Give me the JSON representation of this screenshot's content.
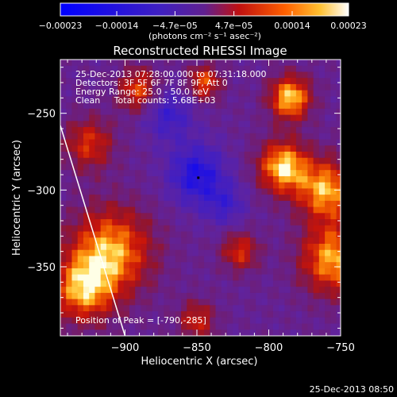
{
  "chart_data": {
    "type": "heatmap",
    "title": "Reconstructed RHESSI Image",
    "xlabel": "Heliocentric X (arcsec)",
    "ylabel": "Heliocentric Y (arcsec)",
    "xlim": [
      -945,
      -750
    ],
    "ylim": [
      -395,
      -215
    ],
    "x_ticks": [
      -900,
      -850,
      -800,
      -750
    ],
    "x_tick_labels": [
      "−900",
      "−850",
      "−800",
      "−750"
    ],
    "y_ticks": [
      -250,
      -300,
      -350
    ],
    "y_tick_labels": [
      "−250",
      "−300",
      "−350"
    ],
    "colorbar": {
      "range": [
        -0.00023,
        0.00023
      ],
      "ticks": [
        -0.00023,
        -0.00014,
        -4.7e-05,
        4.7e-05,
        0.00014,
        0.00023
      ],
      "tick_labels": [
        "−0.00023",
        "−0.00014",
        "−4.7e−05",
        "4.7e−05",
        "0.00014",
        "0.00023"
      ],
      "units_label": "(photons cm⁻² s⁻¹ asec⁻²)"
    },
    "annotations": [
      "25-Dec-2013 07:28:00.000 to 07:31:18.000",
      "Detectors: 3F 5F 6F 7F 8F 9F, Att 0",
      "Energy Range: 25.0 - 50.0 keV",
      "Clean     Total counts: 5.68E+03",
      "Position of Peak = [-790,-285]"
    ],
    "peak": [
      -790,
      -285
    ],
    "limb_line": [
      [
        -945,
        -258
      ],
      [
        -900,
        -395
      ]
    ],
    "colors": {
      "negative": "#2020ff",
      "zero": "#6020a0",
      "positive": "#ff7000",
      "max": "#ffffff"
    },
    "hot_regions": [
      {
        "x": -785,
        "y": -240,
        "sigma": 10,
        "amp": 1.0
      },
      {
        "x": -790,
        "y": -285,
        "sigma": 12,
        "amp": 1.0
      },
      {
        "x": -760,
        "y": -300,
        "sigma": 14,
        "amp": 0.9
      },
      {
        "x": -755,
        "y": -345,
        "sigma": 16,
        "amp": 0.9
      },
      {
        "x": -910,
        "y": -340,
        "sigma": 20,
        "amp": 0.9
      },
      {
        "x": -930,
        "y": -365,
        "sigma": 15,
        "amp": 0.8
      },
      {
        "x": -890,
        "y": -235,
        "sigma": 10,
        "amp": 0.7
      },
      {
        "x": -845,
        "y": -230,
        "sigma": 8,
        "amp": 0.7
      },
      {
        "x": -925,
        "y": -270,
        "sigma": 12,
        "amp": 0.6
      },
      {
        "x": -820,
        "y": -340,
        "sigma": 9,
        "amp": 0.6
      },
      {
        "x": -850,
        "y": -385,
        "sigma": 9,
        "amp": 0.55
      }
    ],
    "cold_regions": [
      {
        "x": -850,
        "y": -290,
        "sigma": 14,
        "amp": 0.7
      },
      {
        "x": -870,
        "y": -250,
        "sigma": 12,
        "amp": 0.5
      },
      {
        "x": -830,
        "y": -310,
        "sigma": 10,
        "amp": 0.4
      }
    ]
  },
  "footer_timestamp": "25-Dec-2013 08:50"
}
